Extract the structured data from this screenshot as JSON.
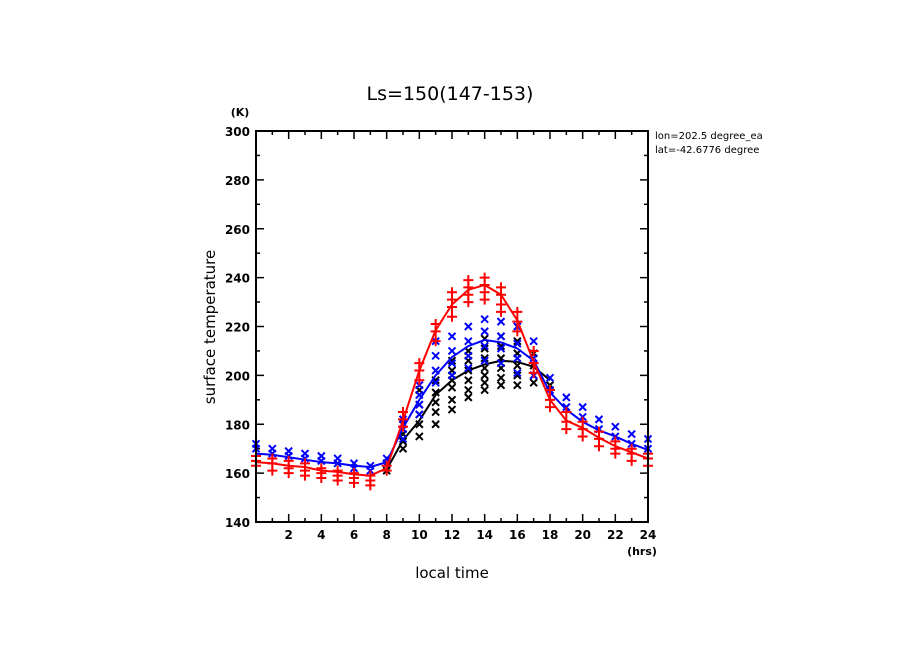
{
  "chart_data": {
    "type": "line",
    "title": "Ls=150(147-153)",
    "xlabel": "local time",
    "ylabel": "surface temperature",
    "x_unit": "(hrs)",
    "y_unit": "(K)",
    "xlim": [
      0,
      24
    ],
    "ylim": [
      140,
      300
    ],
    "x_ticks": [
      2,
      4,
      6,
      8,
      10,
      12,
      14,
      16,
      18,
      20,
      22,
      24
    ],
    "x_minor_step": 1,
    "y_ticks": [
      140,
      160,
      180,
      200,
      220,
      240,
      260,
      280,
      300
    ],
    "y_minor_step": 10,
    "grid": false,
    "legend": null,
    "annotations": [
      "lon=202.5 degree_ea",
      "lat=-42.6776 degree"
    ],
    "series": [
      {
        "name": "red",
        "color": "#ff0000",
        "marker": "plus",
        "line_x": [
          0,
          1,
          2,
          3,
          4,
          5,
          6,
          7,
          8,
          9,
          10,
          11,
          12,
          13,
          14,
          15,
          16,
          17,
          18,
          19,
          20,
          21,
          22,
          23,
          24
        ],
        "line_y": [
          164.5,
          164,
          163,
          162.5,
          161,
          160.5,
          159.5,
          159,
          162,
          181.5,
          202,
          218.5,
          229,
          235,
          237,
          233,
          222.5,
          205.5,
          190,
          181.5,
          178.5,
          174.5,
          171,
          168.5,
          166
        ],
        "points_x": [
          0,
          0,
          0,
          1,
          1,
          1,
          2,
          2,
          2,
          3,
          3,
          3,
          4,
          4,
          4,
          5,
          5,
          5,
          6,
          6,
          6,
          7,
          7,
          7,
          8,
          8,
          9,
          9,
          9,
          10,
          10,
          10,
          11,
          11,
          11,
          12,
          12,
          12,
          12,
          13,
          13,
          13,
          13,
          14,
          14,
          14,
          14,
          15,
          15,
          15,
          15,
          16,
          16,
          16,
          17,
          17,
          17,
          18,
          18,
          18,
          19,
          19,
          19,
          20,
          20,
          20,
          21,
          21,
          21,
          22,
          22,
          22,
          23,
          23,
          23,
          24,
          24,
          24
        ],
        "points_y": [
          167,
          165,
          163,
          166,
          164,
          161,
          165,
          162,
          160,
          164,
          161,
          159,
          162,
          160,
          158,
          161,
          159,
          157,
          160,
          158,
          156,
          159,
          157,
          155,
          163,
          161,
          185,
          182,
          179,
          205,
          202,
          198,
          221,
          218,
          214,
          234,
          231,
          228,
          224,
          239,
          236,
          233,
          230,
          240,
          237,
          234,
          231,
          236,
          233,
          229,
          226,
          226,
          222,
          218,
          210,
          205,
          201,
          194,
          190,
          187,
          185,
          181,
          178,
          181,
          178,
          175,
          177,
          174,
          171,
          173,
          170,
          168,
          170,
          168,
          165,
          168,
          166,
          163
        ]
      },
      {
        "name": "blue",
        "color": "#0000ff",
        "marker": "x",
        "line_x": [
          0,
          1,
          2,
          3,
          4,
          5,
          6,
          7,
          8,
          9,
          10,
          11,
          12,
          13,
          14,
          15,
          16,
          17,
          18,
          19,
          20,
          21,
          22,
          23,
          24
        ],
        "line_y": [
          168,
          167.5,
          166.5,
          165.5,
          164.5,
          164,
          163,
          162.5,
          164.5,
          178.5,
          190,
          200,
          207.5,
          212,
          214.5,
          213.5,
          211,
          206,
          193,
          186,
          181,
          177.5,
          175,
          172,
          169.5
        ],
        "points_x": [
          0,
          0,
          1,
          1,
          2,
          2,
          3,
          3,
          4,
          4,
          5,
          5,
          6,
          6,
          7,
          7,
          8,
          8,
          9,
          9,
          9,
          10,
          10,
          10,
          10,
          11,
          11,
          11,
          11,
          12,
          12,
          12,
          12,
          13,
          13,
          13,
          13,
          14,
          14,
          14,
          14,
          15,
          15,
          15,
          15,
          16,
          16,
          16,
          16,
          17,
          17,
          17,
          18,
          18,
          19,
          19,
          20,
          20,
          21,
          21,
          22,
          22,
          23,
          23,
          24,
          24
        ],
        "points_y": [
          172,
          170,
          170,
          168,
          169,
          167,
          168,
          166,
          167,
          165,
          166,
          164,
          164,
          162,
          163,
          161,
          166,
          164,
          182,
          178,
          174,
          196,
          192,
          188,
          184,
          214,
          208,
          202,
          197,
          216,
          210,
          205,
          200,
          220,
          214,
          208,
          203,
          223,
          218,
          212,
          206,
          222,
          216,
          211,
          205,
          220,
          213,
          207,
          201,
          214,
          207,
          200,
          199,
          194,
          191,
          187,
          187,
          183,
          182,
          178,
          179,
          175,
          176,
          172,
          174,
          170
        ]
      },
      {
        "name": "black",
        "color": "#000000",
        "marker": "x",
        "line_x": [
          8,
          9,
          10,
          11,
          12,
          13,
          14,
          15,
          16,
          17,
          18
        ],
        "line_y": [
          161.5,
          173.5,
          181.5,
          192,
          198,
          202,
          204.5,
          206,
          205.5,
          203.5,
          198
        ],
        "points_x": [
          8,
          8,
          9,
          9,
          9,
          9,
          10,
          10,
          10,
          10,
          10,
          11,
          11,
          11,
          11,
          11,
          12,
          12,
          12,
          12,
          12,
          12,
          13,
          13,
          13,
          13,
          13,
          13,
          14,
          14,
          14,
          14,
          14,
          14,
          14,
          15,
          15,
          15,
          15,
          15,
          15,
          16,
          16,
          16,
          16,
          16,
          17,
          17,
          17,
          17,
          18
        ],
        "points_y": [
          164,
          161,
          180,
          176,
          173,
          170,
          194,
          188,
          184,
          180,
          175,
          198,
          193,
          189,
          185,
          180,
          206,
          202,
          198,
          195,
          190,
          186,
          210,
          206,
          202,
          198,
          194,
          191,
          215,
          211,
          207,
          203,
          200,
          197,
          194,
          216,
          212,
          207,
          203,
          199,
          196,
          214,
          209,
          204,
          200,
          196,
          209,
          204,
          200,
          197,
          196
        ]
      }
    ]
  }
}
